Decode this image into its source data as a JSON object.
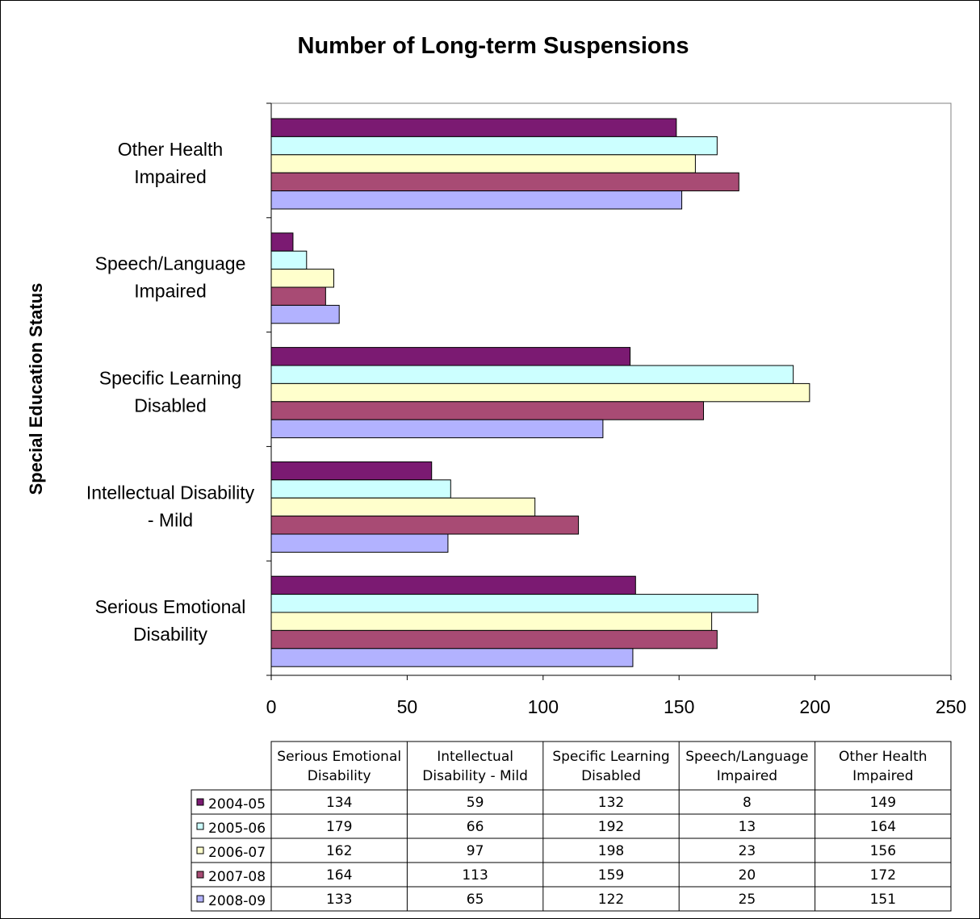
{
  "chart_data": {
    "type": "bar",
    "orientation": "horizontal",
    "title": "Number of Long-term Suspensions",
    "ylabel": "Special Education Status",
    "xlabel": "",
    "xlim": [
      0,
      250
    ],
    "xticks": [
      "0",
      "50",
      "100",
      "150",
      "200",
      "250"
    ],
    "categories": [
      [
        "Serious Emotional",
        "Disability"
      ],
      [
        "Intellectual Disability",
        "- Mild"
      ],
      [
        "Specific Learning",
        "Disabled"
      ],
      [
        "Speech/Language",
        "Impaired"
      ],
      [
        "Other Health",
        "Impaired"
      ]
    ],
    "table_headers": [
      [
        "Serious Emotional",
        "Disability"
      ],
      [
        "Intellectual",
        "Disability - Mild"
      ],
      [
        "Specific Learning",
        "Disabled"
      ],
      [
        "Speech/Language",
        "Impaired"
      ],
      [
        "Other Health",
        "Impaired"
      ]
    ],
    "series": [
      {
        "name": "2004-05",
        "color": "#7b1a72",
        "values": [
          134,
          59,
          132,
          8,
          149
        ]
      },
      {
        "name": "2005-06",
        "color": "#ccffff",
        "values": [
          179,
          66,
          192,
          13,
          164
        ]
      },
      {
        "name": "2006-07",
        "color": "#ffffcc",
        "values": [
          162,
          97,
          198,
          23,
          156
        ]
      },
      {
        "name": "2007-08",
        "color": "#a84b74",
        "values": [
          164,
          113,
          159,
          20,
          172
        ]
      },
      {
        "name": "2008-09",
        "color": "#b2b2ff",
        "values": [
          133,
          65,
          122,
          25,
          151
        ]
      }
    ],
    "grid": false,
    "legend": "data-table"
  }
}
